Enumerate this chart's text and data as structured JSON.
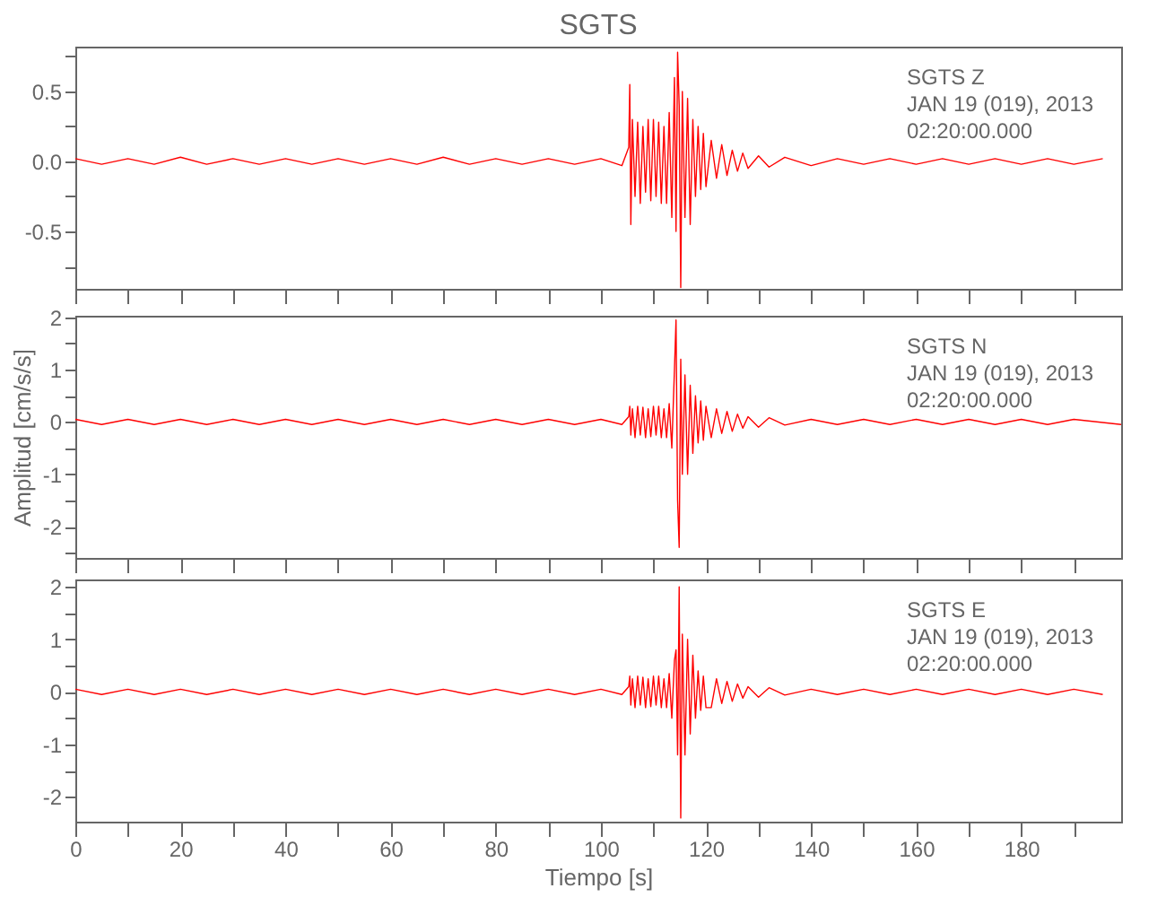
{
  "chart_data": [
    {
      "type": "line",
      "title": "SGTS",
      "tick_labels": "y",
      "annotations": [
        "SGTS   Z",
        "JAN 19 (019), 2013",
        "02:20:00.000"
      ],
      "xlim": [
        0,
        199
      ],
      "xticks": [
        0,
        {
          "value": 10,
          "label": null
        },
        20,
        {
          "value": 30,
          "label": null
        },
        40,
        {
          "value": 50,
          "label": null
        },
        60,
        {
          "value": 70,
          "label": null
        },
        80,
        {
          "value": 90,
          "label": null
        },
        100,
        {
          "value": 110,
          "label": null
        },
        120,
        {
          "value": 130,
          "label": null
        },
        140,
        {
          "value": 150,
          "label": null
        },
        160,
        {
          "value": 170,
          "label": null
        },
        180,
        {
          "value": 190,
          "label": null
        }
      ],
      "ylim": [
        -0.91,
        0.82
      ],
      "yticks": [
        {
          "value": -0.75,
          "label": null
        },
        -0.5,
        {
          "value": -0.25,
          "label": null
        },
        {
          "value": 0,
          "label": "0.0"
        },
        {
          "value": 0.25,
          "label": null
        },
        0.5,
        {
          "value": 0.75,
          "label": null
        }
      ],
      "x": [
        0,
        5,
        10,
        15,
        20,
        25,
        30,
        35,
        40,
        45,
        50,
        55,
        60,
        65,
        70,
        75,
        80,
        85,
        90,
        95,
        100,
        104,
        105.3,
        105.5,
        105.7,
        106,
        106.5,
        107,
        107.5,
        108,
        108.5,
        109,
        109.5,
        110,
        110.5,
        111,
        111.5,
        112,
        112.5,
        113,
        113.5,
        114,
        114.3,
        114.6,
        114.9,
        115.2,
        115.5,
        116,
        116.5,
        117,
        117.5,
        118,
        118.5,
        119,
        119.5,
        120,
        121,
        122,
        123,
        124,
        125,
        126,
        127,
        128,
        130,
        132,
        135,
        140,
        145,
        150,
        155,
        160,
        165,
        170,
        175,
        180,
        185,
        190,
        195.5
      ],
      "series": [
        {
          "color": "#ff0000",
          "values": [
            0.02,
            -0.02,
            0.02,
            -0.02,
            0.03,
            -0.02,
            0.02,
            -0.02,
            0.02,
            -0.02,
            0.02,
            -0.02,
            0.02,
            -0.02,
            0.03,
            -0.02,
            0.02,
            -0.02,
            0.02,
            -0.02,
            0.02,
            -0.03,
            0.1,
            0.55,
            -0.45,
            0.3,
            -0.25,
            0.28,
            -0.3,
            0.25,
            -0.22,
            0.3,
            -0.28,
            0.3,
            -0.25,
            0.28,
            -0.3,
            0.25,
            -0.3,
            0.35,
            -0.4,
            0.6,
            -0.5,
            0.78,
            0.4,
            -0.9,
            0.5,
            -0.4,
            0.45,
            -0.45,
            0.3,
            -0.25,
            0.25,
            -0.2,
            0.2,
            -0.18,
            0.15,
            -0.12,
            0.12,
            -0.1,
            0.08,
            -0.07,
            0.06,
            -0.05,
            0.04,
            -0.04,
            0.03,
            -0.03,
            0.02,
            -0.02,
            0.02,
            -0.02,
            0.02,
            -0.02,
            0.02,
            -0.02,
            0.02,
            -0.02,
            0.02
          ]
        }
      ]
    },
    {
      "type": "line",
      "ylabel": "Amplitud [cm/s/s]",
      "tick_labels": "y",
      "annotations": [
        "SGTS   N",
        "JAN 19 (019), 2013",
        "02:20:00.000"
      ],
      "xlim": [
        0,
        199
      ],
      "xticks": [
        0,
        {
          "value": 10,
          "label": null
        },
        20,
        {
          "value": 30,
          "label": null
        },
        40,
        {
          "value": 50,
          "label": null
        },
        60,
        {
          "value": 70,
          "label": null
        },
        80,
        {
          "value": 90,
          "label": null
        },
        100,
        {
          "value": 110,
          "label": null
        },
        120,
        {
          "value": 130,
          "label": null
        },
        140,
        {
          "value": 150,
          "label": null
        },
        160,
        {
          "value": 170,
          "label": null
        },
        180,
        {
          "value": 190,
          "label": null
        }
      ],
      "ylim": [
        -2.6,
        2.03
      ],
      "yticks": [
        {
          "value": -2.5,
          "label": null
        },
        -2,
        {
          "value": -1.5,
          "label": null
        },
        -1,
        {
          "value": -0.5,
          "label": null
        },
        0,
        {
          "value": 0.5,
          "label": null
        },
        1,
        {
          "value": 1.5,
          "label": null
        },
        2
      ],
      "x": [
        0,
        5,
        10,
        15,
        20,
        25,
        30,
        35,
        40,
        45,
        50,
        55,
        60,
        65,
        70,
        75,
        80,
        85,
        90,
        95,
        100,
        104,
        105.3,
        105.5,
        105.7,
        106,
        106.5,
        107,
        107.5,
        108,
        108.5,
        109,
        109.5,
        110,
        110.5,
        111,
        111.5,
        112,
        112.5,
        113,
        113.5,
        114,
        114.3,
        114.6,
        114.9,
        115.2,
        115.5,
        116,
        116.5,
        117,
        117.5,
        118,
        118.5,
        119,
        119.5,
        120,
        121,
        122,
        123,
        124,
        125,
        126,
        127,
        128,
        130,
        132,
        135,
        140,
        145,
        150,
        155,
        160,
        165,
        170,
        175,
        180,
        185,
        190,
        199
      ],
      "series": [
        {
          "color": "#ff0000",
          "values": [
            0.05,
            -0.05,
            0.05,
            -0.05,
            0.05,
            -0.05,
            0.05,
            -0.05,
            0.05,
            -0.05,
            0.05,
            -0.05,
            0.05,
            -0.05,
            0.05,
            -0.05,
            0.05,
            -0.05,
            0.05,
            -0.05,
            0.05,
            -0.05,
            0.1,
            0.3,
            -0.25,
            0.25,
            -0.3,
            0.3,
            -0.25,
            0.28,
            -0.3,
            0.25,
            -0.28,
            0.3,
            -0.25,
            0.3,
            -0.3,
            0.25,
            -0.3,
            0.35,
            -0.5,
            1.0,
            1.95,
            -1.5,
            -2.4,
            1.2,
            -1.0,
            0.9,
            -1.0,
            0.7,
            -0.6,
            0.5,
            -0.4,
            0.4,
            -0.35,
            0.3,
            -0.3,
            0.25,
            -0.22,
            0.2,
            -0.18,
            0.15,
            -0.12,
            0.1,
            -0.1,
            0.08,
            -0.06,
            0.05,
            -0.05,
            0.05,
            -0.05,
            0.05,
            -0.05,
            0.05,
            -0.05,
            0.05,
            -0.05,
            0.05,
            -0.05
          ]
        }
      ]
    },
    {
      "type": "line",
      "xlabel": "Tiempo [s]",
      "annotations": [
        "SGTS   E",
        "JAN 19 (019), 2013",
        "02:20:00.000"
      ],
      "xlim": [
        0,
        199
      ],
      "xticks": [
        0,
        {
          "value": 10,
          "label": null
        },
        20,
        {
          "value": 30,
          "label": null
        },
        40,
        {
          "value": 50,
          "label": null
        },
        60,
        {
          "value": 70,
          "label": null
        },
        80,
        {
          "value": 90,
          "label": null
        },
        100,
        {
          "value": 110,
          "label": null
        },
        120,
        {
          "value": 130,
          "label": null
        },
        140,
        {
          "value": 150,
          "label": null
        },
        160,
        {
          "value": 170,
          "label": null
        },
        180,
        {
          "value": 190,
          "label": null
        }
      ],
      "ylim": [
        -2.47,
        2.14
      ],
      "yticks": [
        -2,
        {
          "value": -1.5,
          "label": null
        },
        -1,
        {
          "value": -0.5,
          "label": null
        },
        0,
        {
          "value": 0.5,
          "label": null
        },
        1,
        {
          "value": 1.5,
          "label": null
        },
        2
      ],
      "x": [
        0,
        5,
        10,
        15,
        20,
        25,
        30,
        35,
        40,
        45,
        50,
        55,
        60,
        65,
        70,
        75,
        80,
        85,
        90,
        95,
        100,
        104,
        105.3,
        105.5,
        105.7,
        106,
        106.5,
        107,
        107.5,
        108,
        108.5,
        109,
        109.5,
        110,
        110.5,
        111,
        111.5,
        112,
        112.5,
        113,
        113.5,
        114,
        114.3,
        114.6,
        114.9,
        115.2,
        115.5,
        116,
        116.5,
        117,
        117.5,
        118,
        118.5,
        119,
        119.5,
        120,
        121,
        122,
        123,
        124,
        125,
        126,
        127,
        128,
        130,
        132,
        135,
        140,
        145,
        150,
        155,
        160,
        165,
        170,
        175,
        180,
        185,
        190,
        195.5
      ],
      "series": [
        {
          "color": "#ff0000",
          "values": [
            0.05,
            -0.05,
            0.05,
            -0.05,
            0.05,
            -0.05,
            0.05,
            -0.05,
            0.05,
            -0.05,
            0.05,
            -0.05,
            0.05,
            -0.05,
            0.05,
            -0.05,
            0.05,
            -0.05,
            0.05,
            -0.05,
            0.05,
            -0.05,
            0.1,
            0.3,
            -0.25,
            0.25,
            -0.3,
            0.3,
            -0.25,
            0.28,
            -0.3,
            0.25,
            -0.28,
            0.3,
            -0.25,
            0.3,
            -0.3,
            0.25,
            -0.3,
            0.35,
            -0.5,
            0.6,
            0.8,
            -1.2,
            2.0,
            -2.4,
            1.1,
            -1.2,
            1.0,
            -0.8,
            0.7,
            -0.5,
            0.4,
            -0.35,
            0.3,
            -0.3,
            -0.3,
            0.25,
            -0.22,
            0.2,
            -0.18,
            0.15,
            -0.12,
            0.1,
            -0.1,
            0.08,
            -0.06,
            0.05,
            -0.05,
            0.05,
            -0.05,
            0.05,
            -0.05,
            0.05,
            -0.05,
            0.05,
            -0.05,
            0.05,
            -0.05
          ]
        }
      ]
    }
  ]
}
